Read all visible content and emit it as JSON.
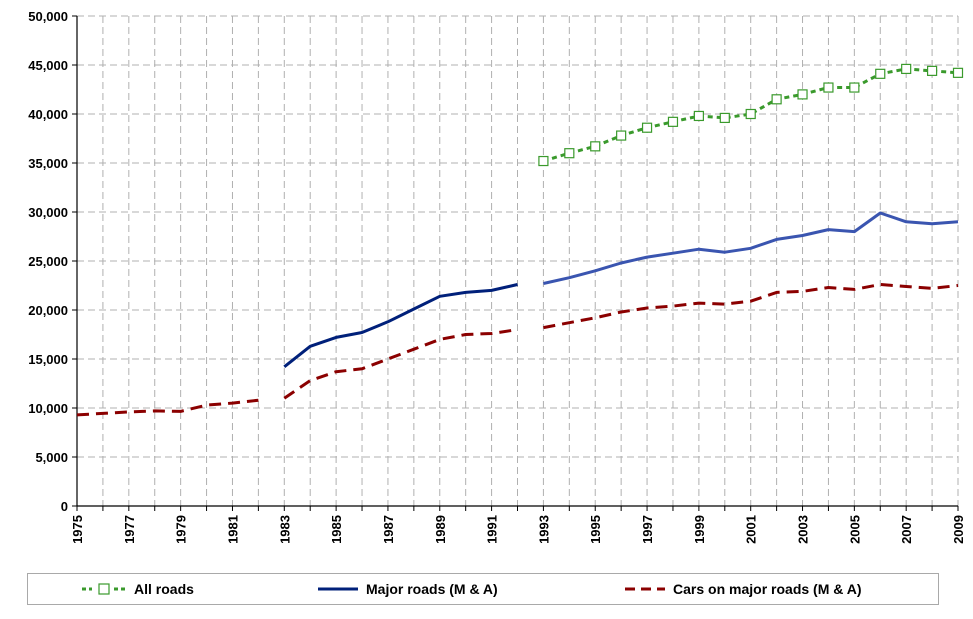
{
  "chart_data": {
    "type": "line",
    "title": "",
    "xlabel": "",
    "ylabel": "",
    "xlim": [
      1975,
      2009
    ],
    "ylim": [
      0,
      50000
    ],
    "yticks": [
      0,
      5000,
      10000,
      15000,
      20000,
      25000,
      30000,
      35000,
      40000,
      45000,
      50000
    ],
    "ytick_labels": [
      "0",
      "5,000",
      "10,000",
      "15,000",
      "20,000",
      "25,000",
      "30,000",
      "35,000",
      "40,000",
      "45,000",
      "50,000"
    ],
    "xticks": [
      1975,
      1977,
      1979,
      1981,
      1983,
      1985,
      1987,
      1989,
      1991,
      1993,
      1995,
      1997,
      1999,
      2001,
      2003,
      2005,
      2007,
      2009
    ],
    "xtick_labels": [
      "1975",
      "1977",
      "1979",
      "1981",
      "1983",
      "1985",
      "1987",
      "1989",
      "1991",
      "1993",
      "1995",
      "1997",
      "1999",
      "2001",
      "2003",
      "2005",
      "2007",
      "2009"
    ],
    "grid": true,
    "legend_position": "bottom",
    "series": [
      {
        "name": "All roads",
        "color": "#3a9a2c",
        "style": "dashed-square-markers",
        "segments": [
          {
            "x": [
              1993,
              1994,
              1995,
              1996,
              1997,
              1998,
              1999,
              2000,
              2001,
              2002,
              2003,
              2004,
              2005,
              2006,
              2007,
              2008,
              2009
            ],
            "y": [
              35200,
              36000,
              36700,
              37800,
              38600,
              39200,
              39800,
              39600,
              40000,
              41500,
              42000,
              42700,
              42700,
              44100,
              44600,
              44400,
              44200
            ]
          }
        ]
      },
      {
        "name": "Major roads (M & A)",
        "color": "#00207a",
        "color_late": "#3a55b0",
        "style": "solid",
        "segments": [
          {
            "x": [
              1983,
              1984,
              1985,
              1986,
              1987,
              1988,
              1989,
              1990,
              1991,
              1992
            ],
            "y": [
              14200,
              16300,
              17200,
              17700,
              18800,
              20100,
              21400,
              21800,
              22000,
              22600
            ]
          },
          {
            "x": [
              1993,
              1994,
              1995,
              1996,
              1997,
              1998,
              1999,
              2000,
              2001,
              2002,
              2003,
              2004,
              2005,
              2006,
              2007,
              2008,
              2009
            ],
            "y": [
              22700,
              23300,
              24000,
              24800,
              25400,
              25800,
              26200,
              25900,
              26300,
              27200,
              27600,
              28200,
              28000,
              29900,
              29000,
              28800,
              29000
            ]
          }
        ]
      },
      {
        "name": "Cars on major roads (M & A)",
        "color": "#8b0000",
        "style": "dashed",
        "segments": [
          {
            "x": [
              1975,
              1976,
              1977,
              1978,
              1979,
              1980,
              1981,
              1982
            ],
            "y": [
              9300,
              9450,
              9600,
              9700,
              9650,
              10300,
              10500,
              10800
            ]
          },
          {
            "x": [
              1983,
              1984,
              1985,
              1986,
              1987,
              1988,
              1989,
              1990,
              1991,
              1992
            ],
            "y": [
              11000,
              12800,
              13700,
              14000,
              15000,
              16000,
              17000,
              17500,
              17600,
              18000
            ]
          },
          {
            "x": [
              1993,
              1994,
              1995,
              1996,
              1997,
              1998,
              1999,
              2000,
              2001,
              2002,
              2003,
              2004,
              2005,
              2006,
              2007,
              2008,
              2009
            ],
            "y": [
              18200,
              18700,
              19200,
              19800,
              20200,
              20400,
              20700,
              20600,
              20900,
              21800,
              21900,
              22300,
              22100,
              22600,
              22400,
              22200,
              22500
            ]
          }
        ]
      }
    ]
  },
  "legend": {
    "items": [
      {
        "label": "All roads",
        "color": "#3a9a2c"
      },
      {
        "label": "Major roads (M & A)",
        "color": "#00207a"
      },
      {
        "label": "Cars on major roads (M & A)",
        "color": "#8b0000"
      }
    ]
  }
}
